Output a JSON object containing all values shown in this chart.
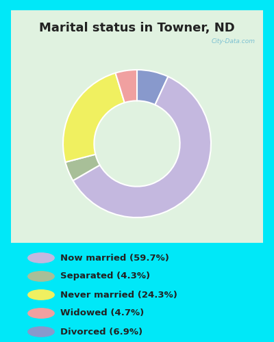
{
  "title": "Marital status in Towner, ND",
  "slices": [
    {
      "label": "Now married (59.7%)",
      "value": 59.7,
      "color": "#c4b8df"
    },
    {
      "label": "Separated (4.3%)",
      "value": 4.3,
      "color": "#a8bf98"
    },
    {
      "label": "Never married (24.3%)",
      "value": 24.3,
      "color": "#f0f060"
    },
    {
      "label": "Widowed (4.7%)",
      "value": 4.7,
      "color": "#f0a0a0"
    },
    {
      "label": "Divorced (6.9%)",
      "value": 6.9,
      "color": "#8899cc"
    }
  ],
  "bg_outer": "#00e8f8",
  "chart_panel_bg": "#e0f2e0",
  "watermark": "City-Data.com",
  "watermark_color": "#70bbd0",
  "title_color": "#222222",
  "title_fontsize": 13,
  "legend_label_color": "#222222",
  "legend_fontsize": 9.5,
  "figsize": [
    4.0,
    5.0
  ],
  "dpi": 100,
  "donut_width": 0.42,
  "startangle": 90,
  "slice_order": [
    4,
    0,
    1,
    2,
    3
  ]
}
